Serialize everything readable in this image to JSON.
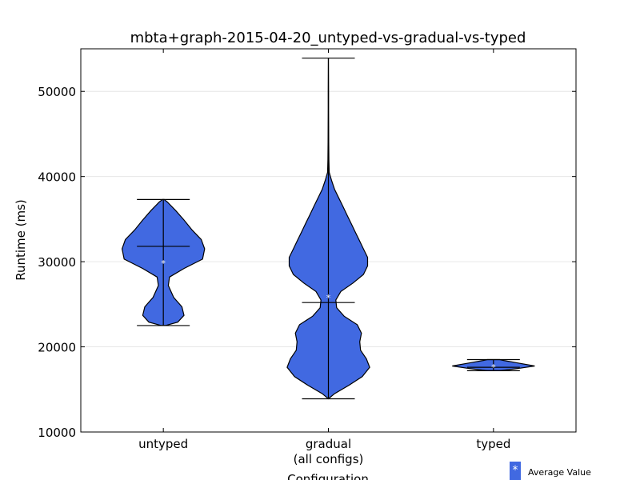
{
  "chart_data": {
    "type": "violin",
    "title": "mbta+graph-2015-04-20_untyped-vs-gradual-vs-typed",
    "xlabel": "Configuration",
    "ylabel": "Runtime (ms)",
    "ylim": [
      10000,
      55000
    ],
    "yticks": [
      10000,
      20000,
      30000,
      40000,
      50000
    ],
    "grid": "horizontal",
    "categories": [
      "untyped",
      "gradual\n(all configs)",
      "typed"
    ],
    "fill_color": "#4169e1",
    "legend": {
      "label": "Average Value",
      "marker": "*",
      "position": "bottom-right"
    },
    "violins": [
      {
        "category": "untyped",
        "min": 22500,
        "max": 37300,
        "median": 31800,
        "mean": 29800,
        "profile": [
          [
            22500,
            0.05
          ],
          [
            22900,
            0.35
          ],
          [
            23700,
            0.5
          ],
          [
            24700,
            0.45
          ],
          [
            25800,
            0.25
          ],
          [
            27200,
            0.12
          ],
          [
            28200,
            0.15
          ],
          [
            29200,
            0.5
          ],
          [
            30300,
            0.95
          ],
          [
            31500,
            1.0
          ],
          [
            32600,
            0.92
          ],
          [
            33700,
            0.7
          ],
          [
            34900,
            0.5
          ],
          [
            36000,
            0.3
          ],
          [
            37000,
            0.1
          ],
          [
            37300,
            0.02
          ]
        ]
      },
      {
        "category": "gradual\n(all configs)",
        "min": 13900,
        "max": 53900,
        "median": 25200,
        "mean": 25800,
        "profile": [
          [
            13900,
            0.0
          ],
          [
            14500,
            0.15
          ],
          [
            15500,
            0.5
          ],
          [
            16500,
            0.82
          ],
          [
            17600,
            1.0
          ],
          [
            18600,
            0.92
          ],
          [
            19600,
            0.78
          ],
          [
            20600,
            0.76
          ],
          [
            21600,
            0.8
          ],
          [
            22600,
            0.7
          ],
          [
            23600,
            0.38
          ],
          [
            24600,
            0.2
          ],
          [
            25500,
            0.18
          ],
          [
            26500,
            0.3
          ],
          [
            27500,
            0.6
          ],
          [
            28500,
            0.85
          ],
          [
            29500,
            0.95
          ],
          [
            30500,
            0.95
          ],
          [
            31500,
            0.85
          ],
          [
            32500,
            0.75
          ],
          [
            33500,
            0.65
          ],
          [
            34500,
            0.55
          ],
          [
            35500,
            0.45
          ],
          [
            36500,
            0.35
          ],
          [
            37500,
            0.25
          ],
          [
            38500,
            0.15
          ],
          [
            39500,
            0.08
          ],
          [
            40500,
            0.02
          ],
          [
            42000,
            0.012
          ],
          [
            44000,
            0.008
          ],
          [
            46000,
            0.006
          ],
          [
            48000,
            0.004
          ],
          [
            50000,
            0.003
          ],
          [
            52000,
            0.002
          ],
          [
            53900,
            0.0
          ]
        ]
      },
      {
        "category": "typed",
        "min": 17200,
        "max": 18500,
        "median": 17600,
        "mean": 17600,
        "profile": [
          [
            17200,
            0.15
          ],
          [
            17500,
            0.65
          ],
          [
            17750,
            1.0
          ],
          [
            18100,
            0.6
          ],
          [
            18400,
            0.25
          ],
          [
            18500,
            0.15
          ]
        ]
      }
    ]
  }
}
